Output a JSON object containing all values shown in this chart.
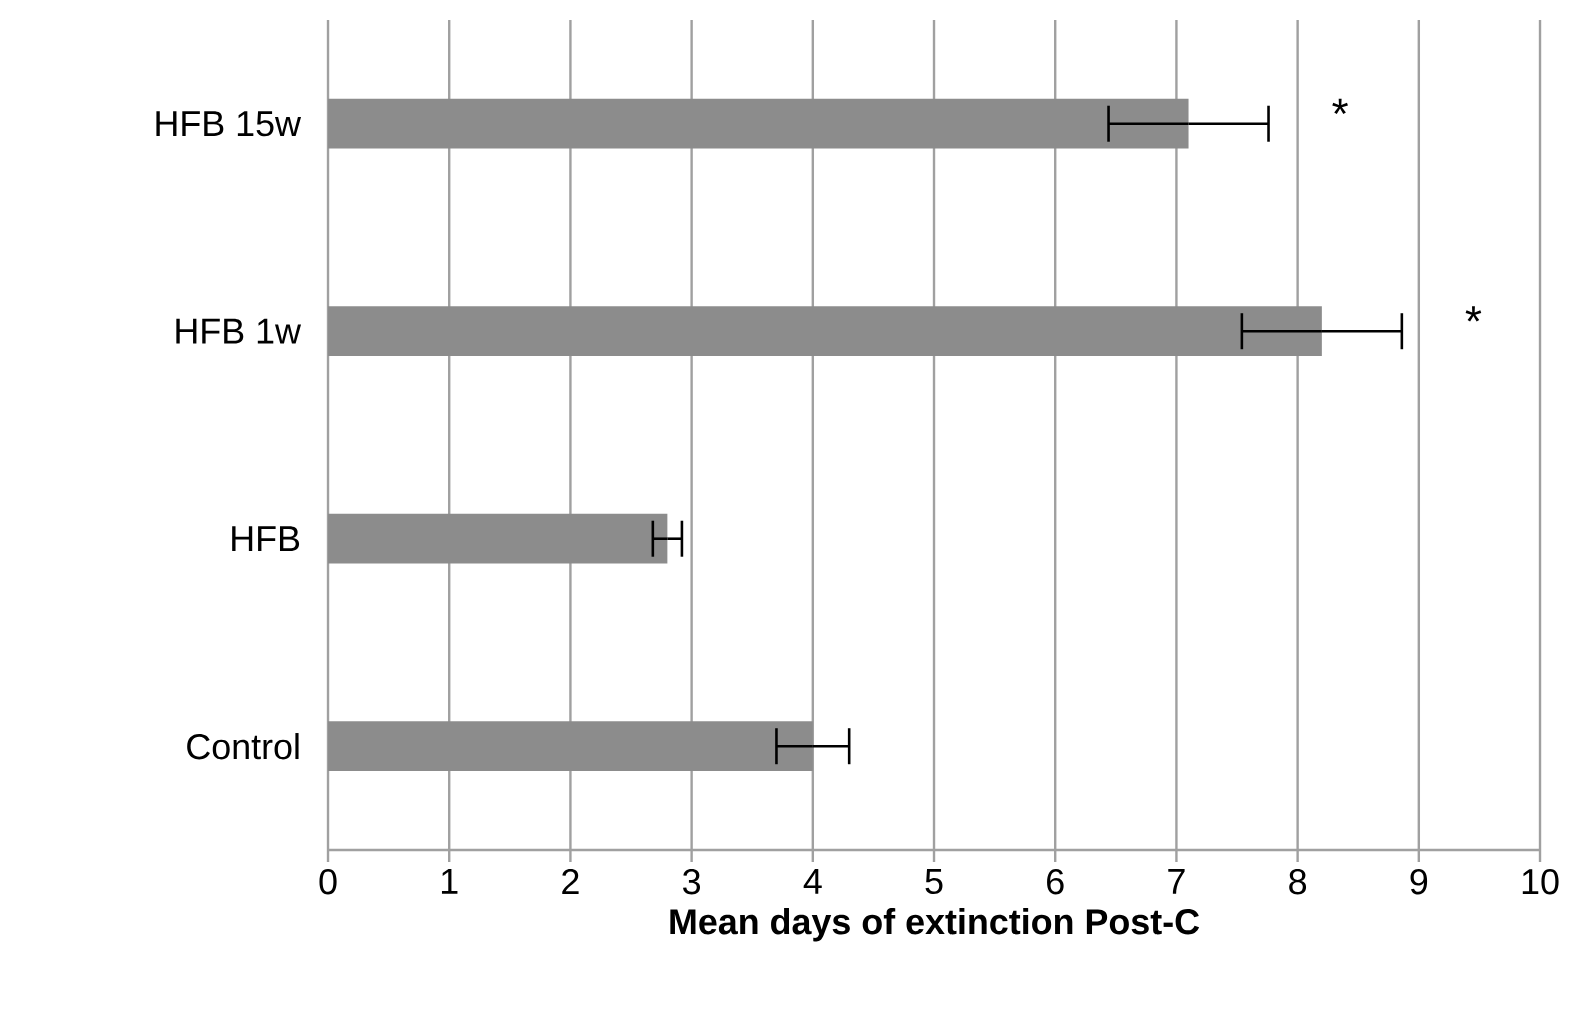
{
  "chart_data": {
    "type": "bar",
    "orientation": "horizontal",
    "xlabel": "Mean days of extinction Post-C",
    "categories": [
      "HFB 15w",
      "HFB 1w",
      "HFB",
      "Control"
    ],
    "values": [
      7.1,
      8.2,
      2.8,
      4.0
    ],
    "errors": [
      0.66,
      0.66,
      0.12,
      0.3
    ],
    "color": "#8c8c8c",
    "xlim": [
      0,
      10
    ],
    "xticks": [
      0,
      1,
      2,
      3,
      4,
      5,
      6,
      7,
      8,
      9,
      10
    ],
    "grid": "x",
    "annotations": [
      "*",
      "*"
    ]
  }
}
